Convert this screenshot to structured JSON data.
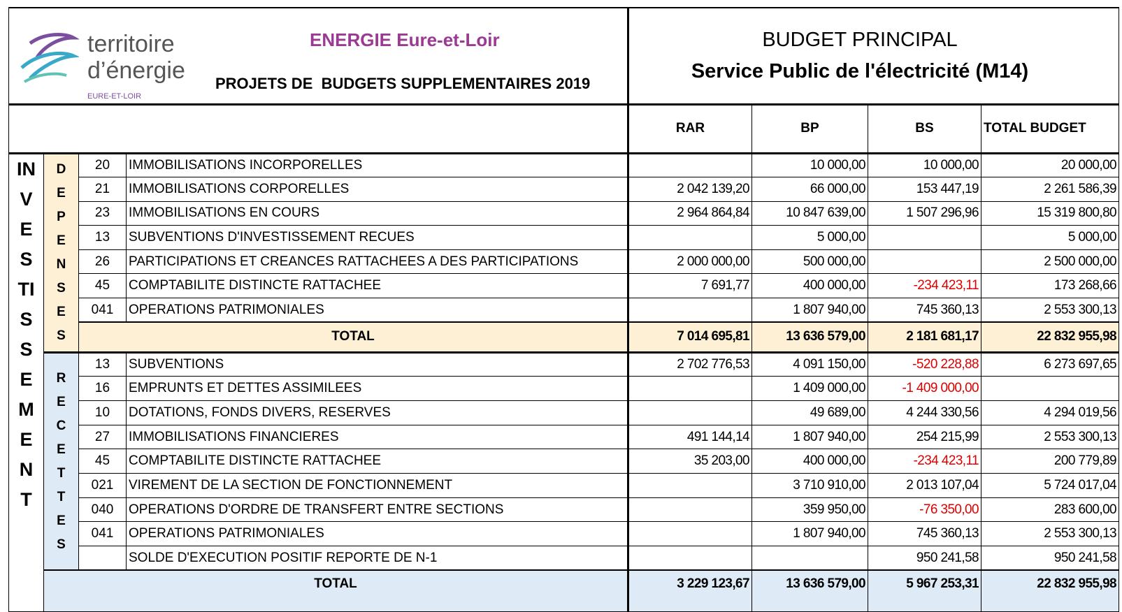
{
  "header": {
    "logo": {
      "line1": "territoire",
      "line2": "d’énergie",
      "line3": "EURE-ET-LOIR"
    },
    "org": "ENERGIE Eure-et-Loir",
    "subtitle": "PROJETS DE  BUDGETS SUPPLEMENTAIRES 2019",
    "budget": "BUDGET PRINCIPAL",
    "service": "Service Public de l'électricité (M14)"
  },
  "table": {
    "columns": [
      "RAR",
      "BP",
      "BS",
      "TOTAL BUDGET"
    ],
    "section": "INVESTISSEMENT",
    "depenses": {
      "label": "DEPENSES",
      "rows": [
        {
          "code": "20",
          "label": "IMMOBILISATIONS INCORPORELLES",
          "bp": "10 000,00",
          "bs": "10 000,00",
          "total": "20 000,00"
        },
        {
          "code": "21",
          "label": "IMMOBILISATIONS CORPORELLES",
          "rar": "2 042 139,20",
          "bp": "66 000,00",
          "bs": "153 447,19",
          "total": "2 261 586,39"
        },
        {
          "code": "23",
          "label": "IMMOBILISATIONS EN COURS",
          "rar": "2 964 864,84",
          "bp": "10 847 639,00",
          "bs": "1 507 296,96",
          "total": "15 319 800,80"
        },
        {
          "code": "13",
          "label": "SUBVENTIONS D'INVESTISSEMENT RECUES",
          "bp": "5 000,00",
          "total": "5 000,00"
        },
        {
          "code": "26",
          "label": "PARTICIPATIONS ET CREANCES RATTACHEES A DES PARTICIPATIONS",
          "rar": "2 000 000,00",
          "bp": "500 000,00",
          "total": "2 500 000,00"
        },
        {
          "code": "45",
          "label": "COMPTABILITE DISTINCTE RATTACHEE",
          "rar": "7 691,77",
          "bp": "400 000,00",
          "bs": "-234 423,11",
          "total": "173 268,66"
        },
        {
          "code": "041",
          "label": "OPERATIONS PATRIMONIALES",
          "bp": "1 807 940,00",
          "bs": "745 360,13",
          "total": "2 553 300,13"
        }
      ],
      "total": {
        "label": "TOTAL",
        "rar": "7 014 695,81",
        "bp": "13 636 579,00",
        "bs": "2 181 681,17",
        "total": "22 832 955,98"
      }
    },
    "recettes": {
      "label": "RECETTES",
      "rows": [
        {
          "code": "13",
          "label": "SUBVENTIONS",
          "rar": "2 702 776,53",
          "bp": "4 091 150,00",
          "bs": "-520 228,88",
          "total": "6 273 697,65"
        },
        {
          "code": "16",
          "label": "EMPRUNTS ET DETTES ASSIMILEES",
          "bp": "1 409 000,00",
          "bs": "-1 409 000,00"
        },
        {
          "code": "10",
          "label": "DOTATIONS, FONDS DIVERS, RESERVES",
          "bp": "49 689,00",
          "bs": "4 244 330,56",
          "total": "4 294 019,56"
        },
        {
          "code": "27",
          "label": "IMMOBILISATIONS FINANCIERES",
          "rar": "491 144,14",
          "bp": "1 807 940,00",
          "bs": "254 215,99",
          "total": "2 553 300,13"
        },
        {
          "code": "45",
          "label": "COMPTABILITE DISTINCTE RATTACHEE",
          "rar": "35 203,00",
          "bp": "400 000,00",
          "bs": "-234 423,11",
          "total": "200 779,89"
        },
        {
          "code": "021",
          "label": "VIREMENT DE LA SECTION DE FONCTIONNEMENT",
          "bp": "3 710 910,00",
          "bs": "2 013 107,04",
          "total": "5 724 017,04"
        },
        {
          "code": "040",
          "label": "OPERATIONS D'ORDRE DE TRANSFERT ENTRE SECTIONS",
          "bp": "359 950,00",
          "bs": "-76 350,00",
          "total": "283 600,00"
        },
        {
          "code": "041",
          "label": "OPERATIONS PATRIMONIALES",
          "bp": "1 807 940,00",
          "bs": "745 360,13",
          "total": "2 553 300,13"
        },
        {
          "label": "SOLDE D'EXECUTION POSITIF REPORTE DE N-1",
          "bs": "950 241,58",
          "total": "950 241,58"
        }
      ],
      "total": {
        "label": "TOTAL",
        "rar": "3 229 123,67",
        "bp": "13 636 579,00",
        "bs": "5 967 253,31",
        "total": "22 832 955,98"
      }
    }
  }
}
